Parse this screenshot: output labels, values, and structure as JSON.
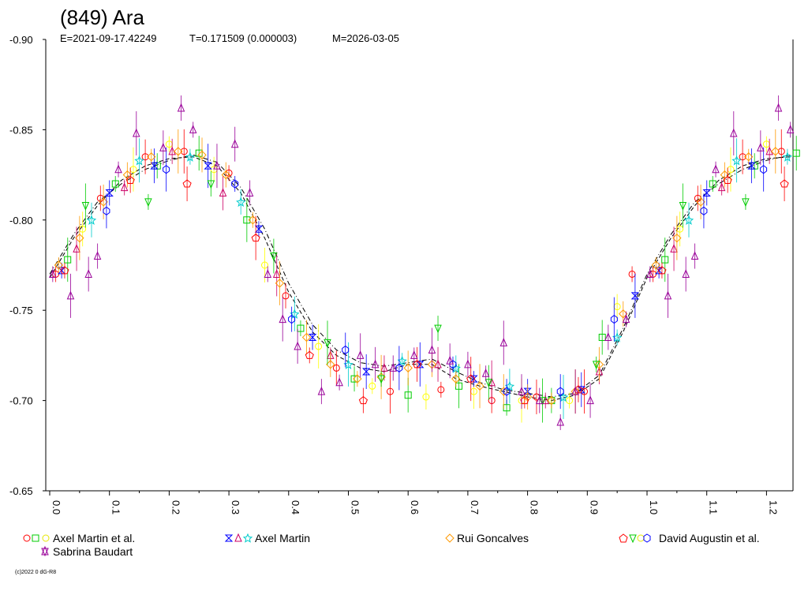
{
  "chart_data": {
    "type": "scatter",
    "title": "(849) Ara",
    "subtitle": {
      "epoch": "E=2021-09-17.42249",
      "period": "T=0.171509 (0.000003)",
      "mean": "M=2026-03-05"
    },
    "xlabel": "",
    "ylabel": "",
    "xlim": [
      0.0,
      1.25
    ],
    "ylim": [
      -0.9,
      -0.65
    ],
    "x_ticks": [
      0.0,
      0.1,
      0.2,
      0.3,
      0.4,
      0.5,
      0.6,
      0.7,
      0.8,
      0.9,
      1.0,
      1.1,
      1.2
    ],
    "x_tick_labels": [
      "0.0",
      "0.1",
      "0.2",
      "0.3",
      "0.4",
      "0.5",
      "0.6",
      "0.7",
      "0.8",
      "0.9",
      "1.0",
      "1.1",
      "1.2"
    ],
    "y_ticks": [
      -0.9,
      -0.85,
      -0.8,
      -0.75,
      -0.7,
      -0.65
    ],
    "y_tick_labels": [
      "-0.90",
      "-0.85",
      "-0.80",
      "-0.75",
      "-0.70",
      "-0.65"
    ],
    "y_inverted": true,
    "phase_repeat_from": 1.0,
    "series": [
      {
        "name": "Axel Martin et al.",
        "id": "axel-martin-et-al",
        "markers": [
          "circle",
          "square",
          "circle"
        ],
        "colors": [
          "#ff0000",
          "#00cc00",
          "#ffff00"
        ],
        "x": [
          0.01,
          0.03,
          0.055,
          0.085,
          0.11,
          0.14,
          0.16,
          0.18,
          0.2,
          0.225,
          0.25,
          0.275,
          0.3,
          0.33,
          0.36,
          0.395,
          0.42,
          0.45,
          0.48,
          0.51,
          0.54,
          0.57,
          0.6,
          0.63,
          0.655,
          0.685,
          0.71,
          0.74,
          0.765,
          0.79,
          0.815,
          0.84,
          0.87,
          0.895,
          0.925,
          0.95,
          0.975
        ],
        "y": [
          -0.77,
          -0.778,
          -0.795,
          -0.812,
          -0.82,
          -0.828,
          -0.835,
          -0.83,
          -0.842,
          -0.838,
          -0.837,
          -0.828,
          -0.826,
          -0.8,
          -0.775,
          -0.758,
          -0.74,
          -0.73,
          -0.718,
          -0.712,
          -0.708,
          -0.705,
          -0.703,
          -0.702,
          -0.706,
          -0.708,
          -0.705,
          -0.7,
          -0.696,
          -0.7,
          -0.702,
          -0.7,
          -0.7,
          -0.705,
          -0.735,
          -0.752,
          -0.77
        ]
      },
      {
        "name": "Axel Martin",
        "id": "axel-martin",
        "markers": [
          "hourglass",
          "triangle",
          "star"
        ],
        "colors": [
          "#0000ff",
          "#cc0066",
          "#00cccc"
        ],
        "x": [
          0.02,
          0.045,
          0.07,
          0.1,
          0.125,
          0.15,
          0.175,
          0.205,
          0.235,
          0.265,
          0.29,
          0.32,
          0.35,
          0.38,
          0.41,
          0.44,
          0.47,
          0.5,
          0.53,
          0.56,
          0.59,
          0.62,
          0.65,
          0.68,
          0.71,
          0.74,
          0.77,
          0.8,
          0.83,
          0.86,
          0.89,
          0.92,
          0.95,
          0.98
        ],
        "y": [
          -0.772,
          -0.784,
          -0.8,
          -0.815,
          -0.818,
          -0.833,
          -0.83,
          -0.838,
          -0.835,
          -0.83,
          -0.815,
          -0.81,
          -0.795,
          -0.77,
          -0.748,
          -0.735,
          -0.725,
          -0.72,
          -0.716,
          -0.718,
          -0.722,
          -0.72,
          -0.72,
          -0.718,
          -0.712,
          -0.71,
          -0.708,
          -0.705,
          -0.7,
          -0.702,
          -0.706,
          -0.716,
          -0.735,
          -0.758
        ]
      },
      {
        "name": "Rui Goncalves",
        "id": "rui-goncalves",
        "markers": [
          "diamond"
        ],
        "colors": [
          "#ff9900"
        ],
        "x": [
          0.015,
          0.05,
          0.09,
          0.13,
          0.17,
          0.215,
          0.255,
          0.295,
          0.34,
          0.385,
          0.43,
          0.47,
          0.515,
          0.555,
          0.6,
          0.64,
          0.68,
          0.72,
          0.76,
          0.8,
          0.84,
          0.88,
          0.92,
          0.96
        ],
        "y": [
          -0.775,
          -0.79,
          -0.81,
          -0.825,
          -0.835,
          -0.838,
          -0.836,
          -0.825,
          -0.8,
          -0.765,
          -0.735,
          -0.72,
          -0.712,
          -0.713,
          -0.718,
          -0.72,
          -0.712,
          -0.708,
          -0.705,
          -0.702,
          -0.7,
          -0.705,
          -0.72,
          -0.748
        ]
      },
      {
        "name": "David Augustin et al.",
        "id": "david-augustin-et-al",
        "markers": [
          "pentagon",
          "down-triangle",
          "hexagon"
        ],
        "colors": [
          "#ff0000",
          "#00cc00",
          "#0000ff"
        ],
        "x": [
          0.025,
          0.06,
          0.095,
          0.135,
          0.165,
          0.195,
          0.23,
          0.27,
          0.31,
          0.345,
          0.375,
          0.405,
          0.435,
          0.465,
          0.495,
          0.525,
          0.555,
          0.585,
          0.615,
          0.65,
          0.675,
          0.705,
          0.735,
          0.765,
          0.795,
          0.825,
          0.855,
          0.885,
          0.915,
          0.945
        ],
        "y": [
          -0.772,
          -0.808,
          -0.805,
          -0.822,
          -0.81,
          -0.828,
          -0.82,
          -0.82,
          -0.82,
          -0.79,
          -0.78,
          -0.745,
          -0.725,
          -0.732,
          -0.728,
          -0.7,
          -0.712,
          -0.718,
          -0.72,
          -0.74,
          -0.72,
          -0.712,
          -0.71,
          -0.705,
          -0.7,
          -0.7,
          -0.705,
          -0.706,
          -0.72,
          -0.745
        ]
      },
      {
        "name": "Sabrina Baudart",
        "id": "sabrina-baudart",
        "markers": [
          "triangle"
        ],
        "colors": [
          "#990099"
        ],
        "x": [
          0.005,
          0.035,
          0.065,
          0.08,
          0.115,
          0.145,
          0.19,
          0.22,
          0.24,
          0.28,
          0.31,
          0.335,
          0.365,
          0.39,
          0.415,
          0.455,
          0.485,
          0.52,
          0.545,
          0.575,
          0.61,
          0.64,
          0.67,
          0.7,
          0.73,
          0.76,
          0.79,
          0.82,
          0.855,
          0.88,
          0.905,
          0.935,
          0.965
        ],
        "y": [
          -0.77,
          -0.758,
          -0.77,
          -0.78,
          -0.828,
          -0.848,
          -0.84,
          -0.862,
          -0.85,
          -0.83,
          -0.842,
          -0.815,
          -0.77,
          -0.745,
          -0.73,
          -0.705,
          -0.71,
          -0.725,
          -0.72,
          -0.718,
          -0.725,
          -0.728,
          -0.722,
          -0.72,
          -0.715,
          -0.732,
          -0.705,
          -0.7,
          -0.688,
          -0.705,
          -0.7,
          -0.735,
          -0.745
        ]
      }
    ],
    "model_curves": [
      {
        "name": "fit",
        "style": "dashed",
        "x": [
          0.0,
          0.04,
          0.08,
          0.12,
          0.16,
          0.2,
          0.24,
          0.28,
          0.32,
          0.36,
          0.4,
          0.44,
          0.48,
          0.52,
          0.56,
          0.6,
          0.64,
          0.68,
          0.72,
          0.76,
          0.8,
          0.84,
          0.88,
          0.92,
          0.96,
          1.0
        ],
        "y": [
          -0.768,
          -0.79,
          -0.808,
          -0.822,
          -0.83,
          -0.834,
          -0.835,
          -0.83,
          -0.815,
          -0.79,
          -0.76,
          -0.738,
          -0.725,
          -0.718,
          -0.716,
          -0.72,
          -0.72,
          -0.712,
          -0.708,
          -0.705,
          -0.702,
          -0.7,
          -0.703,
          -0.712,
          -0.738,
          -0.768
        ]
      },
      {
        "name": "fit-2",
        "style": "dash-dot",
        "x": [
          0.0,
          0.04,
          0.08,
          0.12,
          0.16,
          0.2,
          0.24,
          0.28,
          0.32,
          0.36,
          0.4,
          0.44,
          0.48,
          0.52,
          0.56,
          0.6,
          0.64,
          0.68,
          0.72,
          0.76,
          0.8,
          0.84,
          0.88,
          0.92,
          0.96,
          1.0
        ],
        "y": [
          -0.77,
          -0.792,
          -0.81,
          -0.82,
          -0.828,
          -0.833,
          -0.836,
          -0.832,
          -0.818,
          -0.795,
          -0.765,
          -0.742,
          -0.728,
          -0.721,
          -0.719,
          -0.721,
          -0.723,
          -0.716,
          -0.71,
          -0.706,
          -0.704,
          -0.702,
          -0.704,
          -0.714,
          -0.74,
          -0.77
        ]
      }
    ],
    "legend_placement": "bottom",
    "copyright": "(c)2022 0 dG-R8"
  }
}
